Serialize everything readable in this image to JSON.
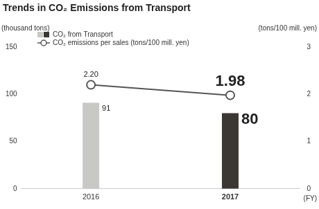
{
  "chart_data": {
    "type": "bar",
    "title": "Trends in CO₂ Emissions from Transport",
    "categories": [
      "2016",
      "2017"
    ],
    "x_label": "(FY)",
    "y_label": "(thousand tons)",
    "y2_label": "(tons/100 mill. yen)",
    "ylim": [
      0,
      150
    ],
    "yticks": [
      0,
      50,
      100,
      150
    ],
    "y2lim": [
      0,
      3
    ],
    "y2ticks": [
      0,
      1,
      2,
      3
    ],
    "grid": false,
    "legend": "top-left",
    "data_labels": true,
    "series": [
      {
        "name": "CO₂ from Transport",
        "type": "bar",
        "colors": [
          "#c8c8c4",
          "#3b3733"
        ],
        "values": [
          91,
          80
        ]
      },
      {
        "name": "CO₂ emissions per sales (tons/100 mill. yen)",
        "type": "line",
        "axis": "y2",
        "color": "#555555",
        "marker": "circle",
        "values": [
          2.2,
          1.98
        ],
        "value_labels": [
          "2.20",
          "1.98"
        ]
      }
    ]
  }
}
